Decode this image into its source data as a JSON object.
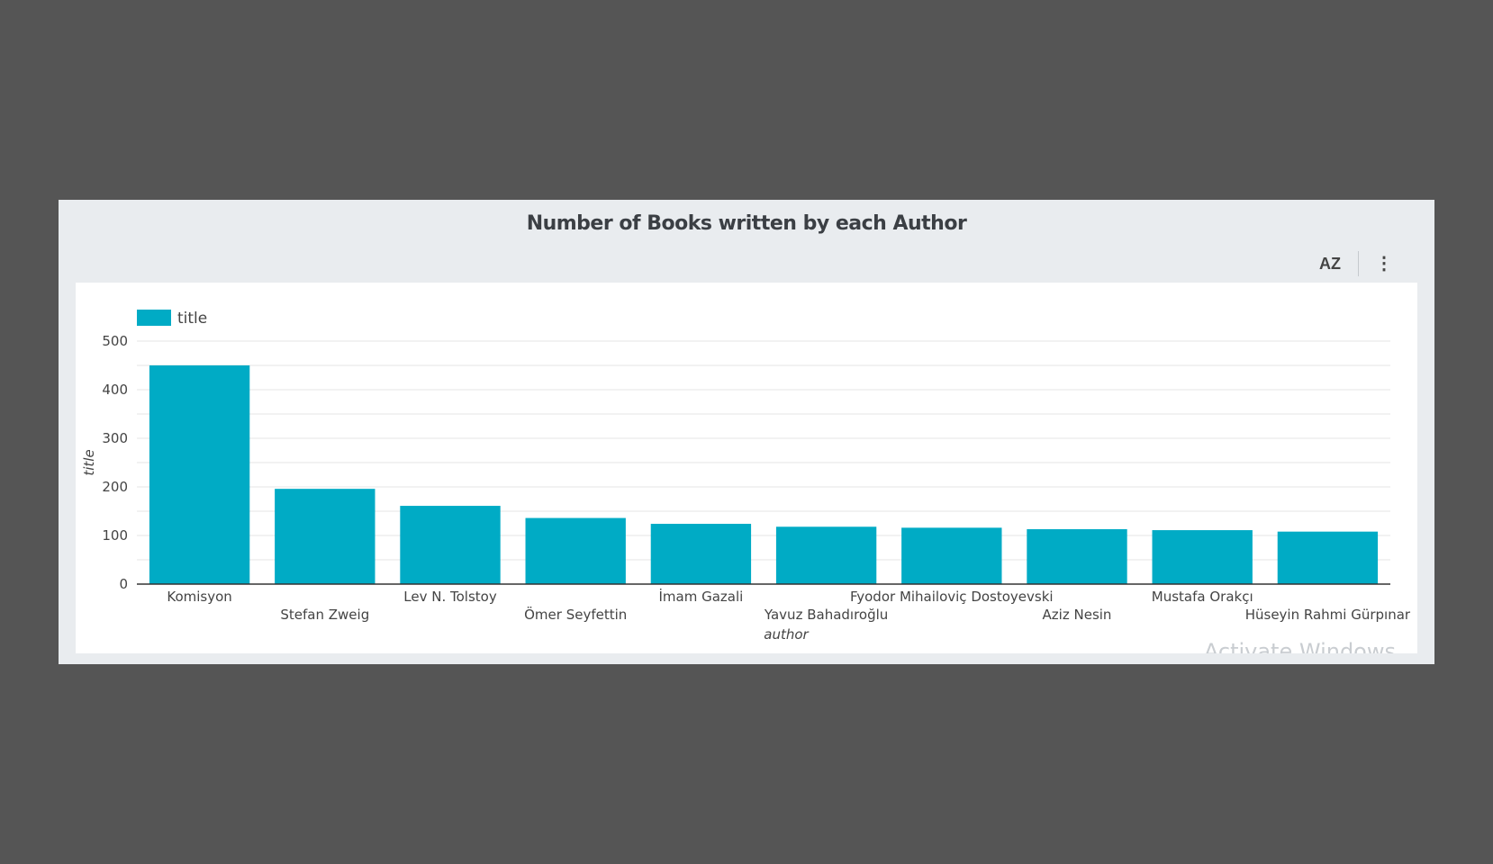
{
  "panel": {
    "title": "Number of Books written by each Author",
    "toolbar": {
      "sort_icon": "sort-alpha-icon",
      "sort_glyph": "AZ",
      "more_icon": "more-vertical-icon",
      "more_glyph": "⋮"
    }
  },
  "watermark": "Activate Windows",
  "colors": {
    "bar": "#00abc5",
    "grid": "#e4e4e4",
    "axis": "#333333",
    "text": "#444444"
  },
  "chart_data": {
    "type": "bar",
    "title": "Number of Books written by each Author",
    "xlabel": "author",
    "ylabel": "title",
    "ylim": [
      0,
      500
    ],
    "yticks": [
      0,
      100,
      200,
      300,
      400,
      500
    ],
    "grid": true,
    "legend": {
      "position": "top-left",
      "entries": [
        "title"
      ]
    },
    "categories": [
      "Komisyon",
      "Stefan Zweig",
      "Lev N. Tolstoy",
      "Ömer Seyfettin",
      "İmam Gazali",
      "Yavuz Bahadıroğlu",
      "Fyodor Mihailoviç Dostoyevski",
      "Aziz Nesin",
      "Mustafa Orakçı",
      "Hüseyin Rahmi Gürpınar"
    ],
    "series": [
      {
        "name": "title",
        "values": [
          450,
          196,
          161,
          136,
          124,
          118,
          116,
          113,
          111,
          108
        ]
      }
    ]
  }
}
